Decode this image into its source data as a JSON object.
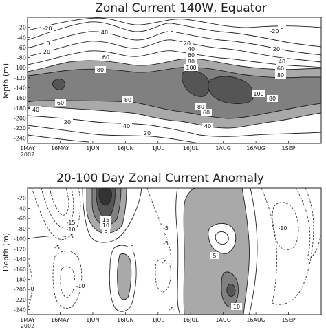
{
  "chart_data": [
    {
      "type": "contour",
      "title": "Zonal Current 140W, Equator",
      "ylabel": "Depth (m)",
      "x_ticks": [
        "1MAY\n2002",
        "16MAY",
        "1JUN",
        "16JUN",
        "1JUL",
        "16JUL",
        "1AUG",
        "16AUG",
        "1SEP"
      ],
      "y_ticks": [
        -20,
        -40,
        -60,
        -80,
        -100,
        -120,
        -140,
        -160,
        -180,
        -200,
        -220,
        -240
      ],
      "ylim": [
        -250,
        0
      ],
      "contour_labels": [
        {
          "value": "-20",
          "x": 9,
          "y": -20
        },
        {
          "value": "0",
          "x": 12,
          "y": -55
        },
        {
          "value": "20",
          "x": 14,
          "y": -68
        },
        {
          "value": "40",
          "x": 28,
          "y": -42
        },
        {
          "value": "60",
          "x": 40,
          "y": -85
        },
        {
          "value": "80",
          "x": 34,
          "y": -100
        },
        {
          "value": "80",
          "x": 50,
          "y": -158
        },
        {
          "value": "60",
          "x": 16,
          "y": -165
        },
        {
          "value": "40",
          "x": 12,
          "y": -185
        },
        {
          "value": "20",
          "x": 20,
          "y": -205
        },
        {
          "value": "40",
          "x": 48,
          "y": -192
        },
        {
          "value": "20",
          "x": 62,
          "y": -228
        },
        {
          "value": "20",
          "x": 82,
          "y": -68
        },
        {
          "value": "40",
          "x": 87,
          "y": -78
        },
        {
          "value": "60",
          "x": 88,
          "y": -87
        },
        {
          "value": "80",
          "x": 89,
          "y": -97
        },
        {
          "value": "100",
          "x": 87,
          "y": -110
        },
        {
          "value": "0",
          "x": 80,
          "y": -44
        },
        {
          "value": "80",
          "x": 92,
          "y": -170
        },
        {
          "value": "60",
          "x": 91,
          "y": -180
        },
        {
          "value": "40",
          "x": 107,
          "y": -190
        },
        {
          "value": "100",
          "x": 121,
          "y": -158
        },
        {
          "value": "80",
          "x": 124,
          "y": -168
        },
        {
          "value": "60",
          "x": 130,
          "y": -106
        },
        {
          "value": "40",
          "x": 130,
          "y": -92
        },
        {
          "value": "80",
          "x": 130,
          "y": -118
        },
        {
          "value": "0",
          "x": 131,
          "y": -20
        },
        {
          "value": "20",
          "x": 126,
          "y": -64
        },
        {
          "value": "-20",
          "x": 126,
          "y": -30
        }
      ],
      "shading": "speeds > 60 cm/s shaded, darker for higher values"
    },
    {
      "type": "contour",
      "title": "20-100 Day Zonal Current Anomaly",
      "ylabel": "Depth (m)",
      "x_ticks": [
        "1MAY\n2002",
        "16MAY",
        "1JUN",
        "16JUN",
        "1JUL",
        "16JUL",
        "1AUG",
        "16AUG",
        "1SEP"
      ],
      "y_ticks": [
        -20,
        -40,
        -60,
        -80,
        -100,
        -120,
        -140,
        -160,
        -180,
        -200,
        -220,
        -240
      ],
      "ylim": [
        -250,
        0
      ],
      "contour_labels": [
        {
          "value": "-15",
          "x": 16,
          "y": -72
        },
        {
          "value": "-10",
          "x": 16,
          "y": -82
        },
        {
          "value": "-5",
          "x": 16,
          "y": -92
        },
        {
          "value": "-5",
          "x": 21,
          "y": -106
        },
        {
          "value": "0",
          "x": 1,
          "y": -205
        },
        {
          "value": "-10",
          "x": 22,
          "y": -207
        },
        {
          "value": "15",
          "x": 35,
          "y": -70
        },
        {
          "value": "10",
          "x": 35,
          "y": -78
        },
        {
          "value": "5",
          "x": 35,
          "y": -87
        },
        {
          "value": "5",
          "x": 43,
          "y": -123
        },
        {
          "value": "-5",
          "x": 64,
          "y": -73
        },
        {
          "value": "-5",
          "x": 63,
          "y": -97
        },
        {
          "value": "-5",
          "x": 57,
          "y": -140
        },
        {
          "value": "-5",
          "x": 64,
          "y": -242
        },
        {
          "value": "5",
          "x": 92,
          "y": -136
        },
        {
          "value": "10",
          "x": 99,
          "y": -224
        },
        {
          "value": "-10",
          "x": 127,
          "y": -86
        }
      ],
      "shading": "positive anomalies shaded, darker for higher values"
    }
  ]
}
